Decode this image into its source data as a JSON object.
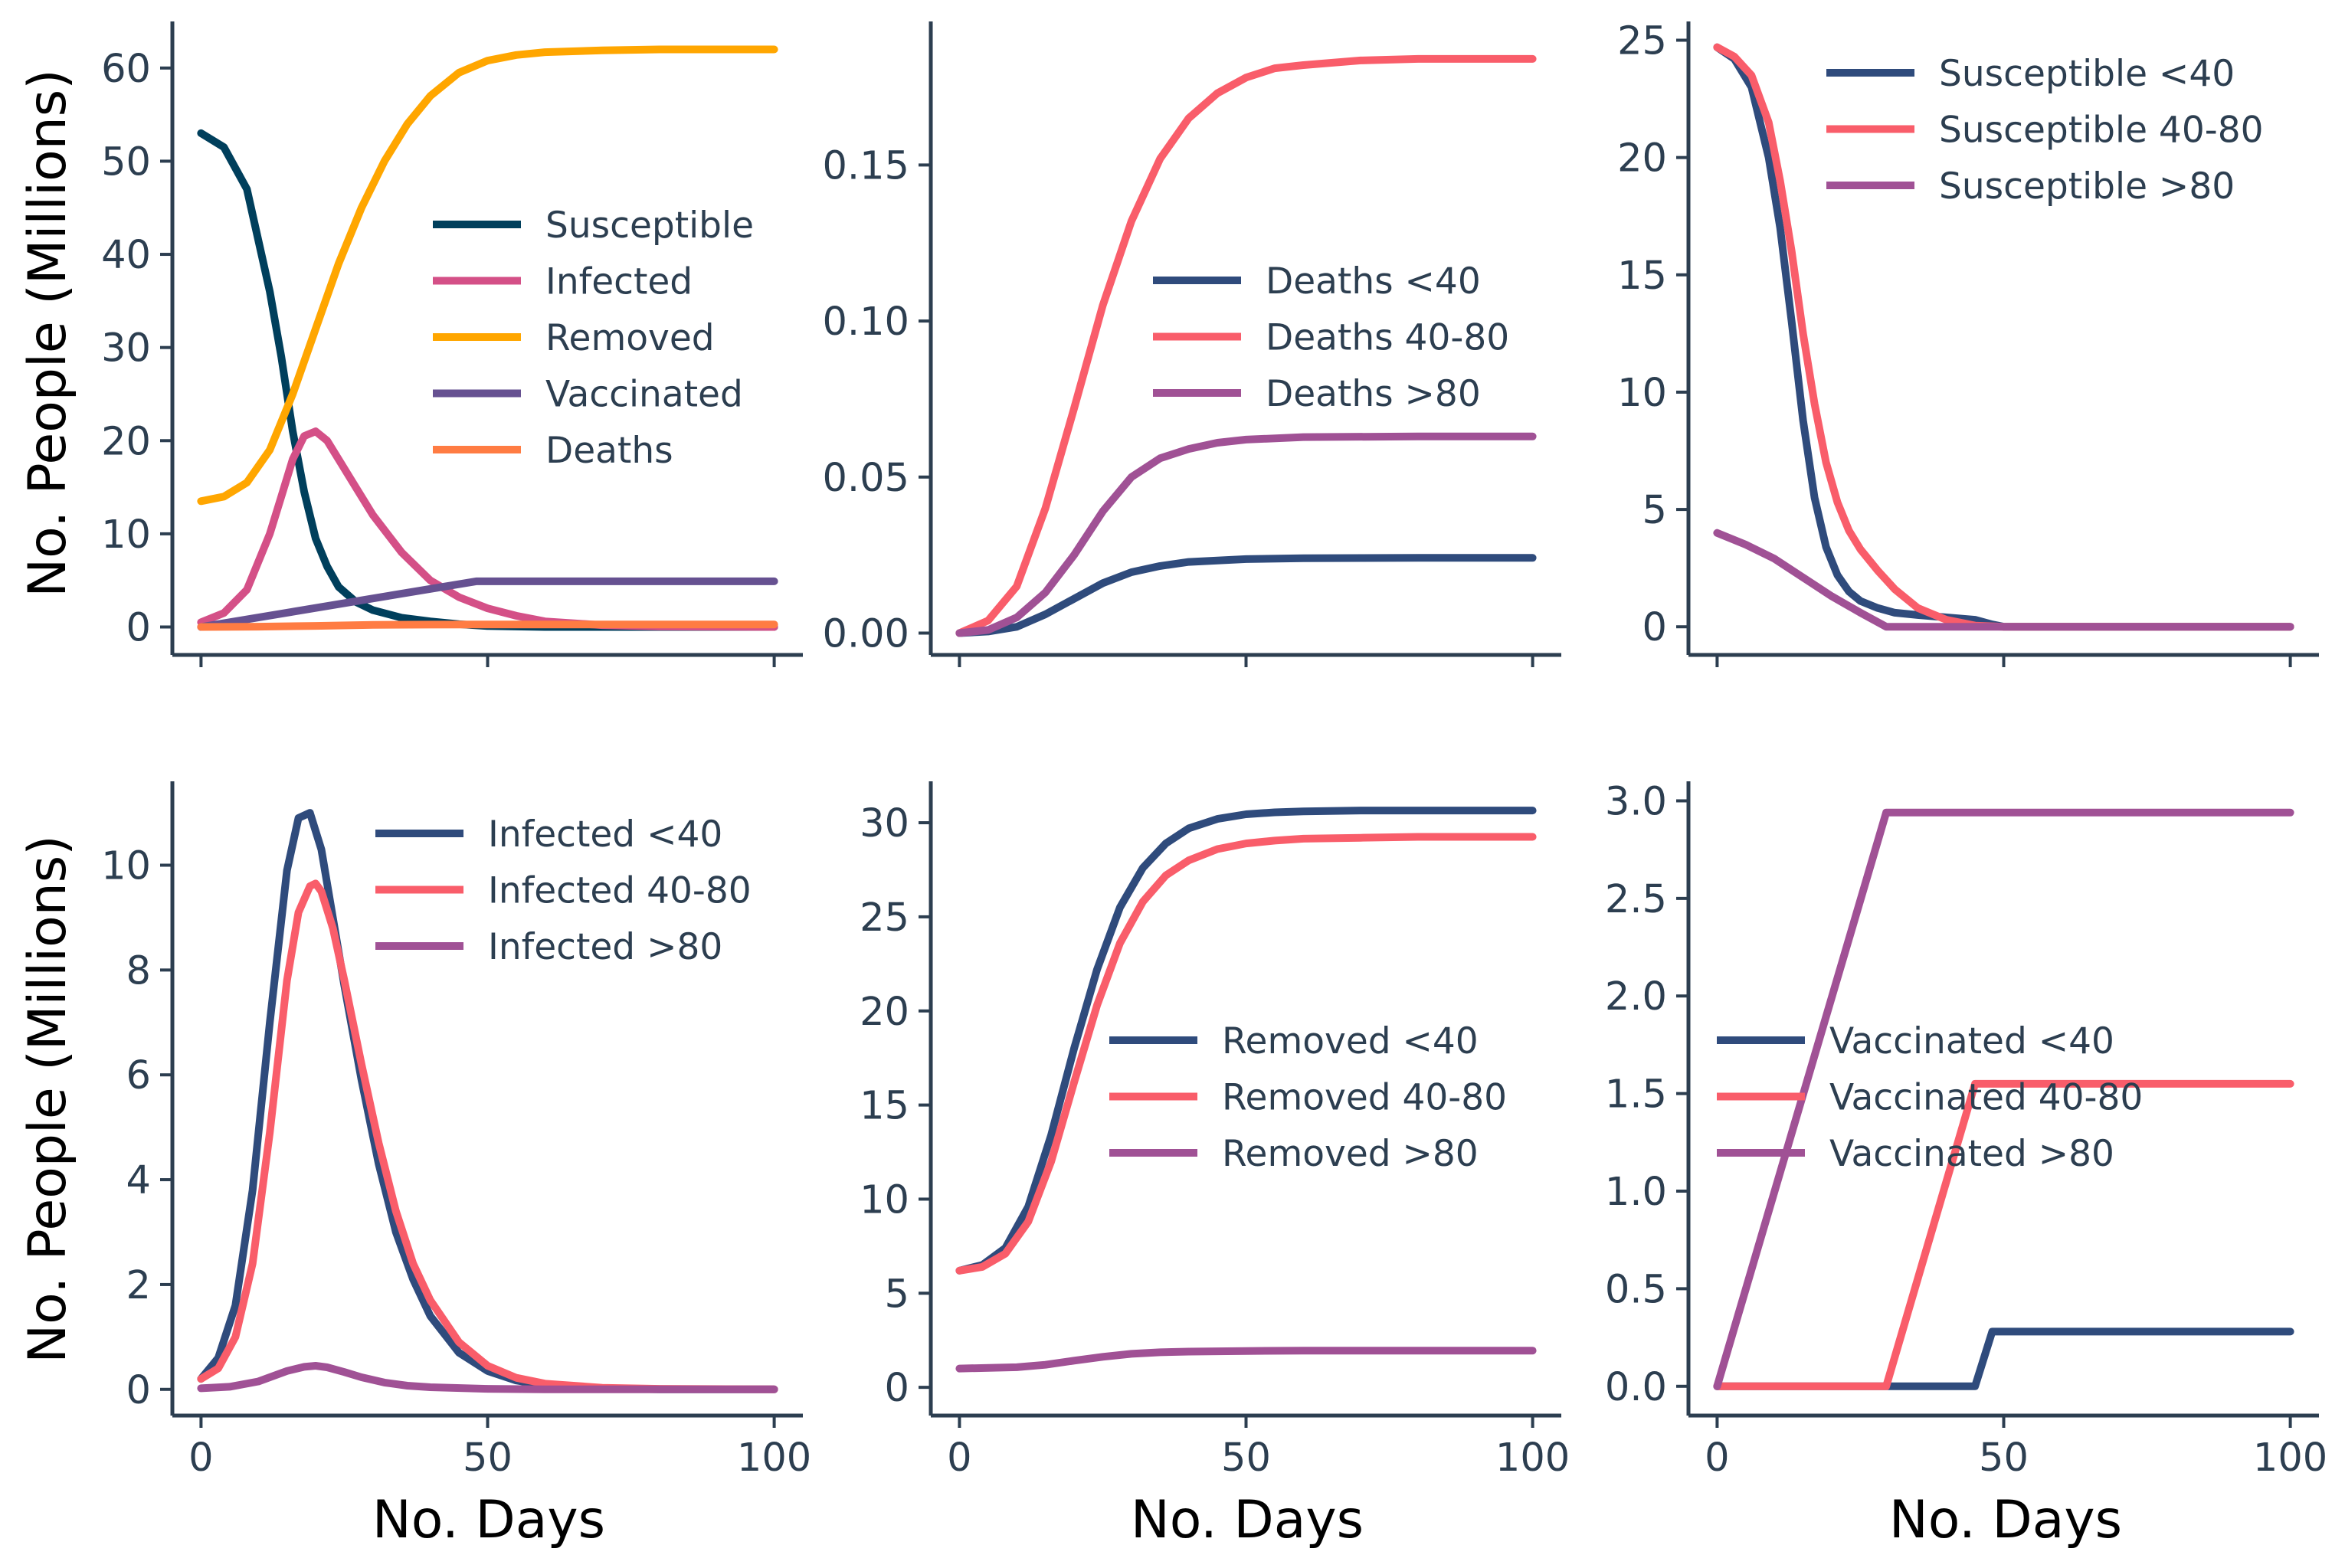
{
  "figure": {
    "xlabel": "No. Days",
    "ylabel": "No. People (Millions)"
  },
  "chart_data": [
    {
      "id": "total",
      "type": "line",
      "title": "",
      "xlabel": "",
      "ylabel": "No. People (Millions)",
      "xlim": [
        -5,
        105
      ],
      "ylim": [
        -3,
        65
      ],
      "xticks": [
        "0",
        "50",
        "100"
      ],
      "yticks": [
        "0",
        "10",
        "20",
        "30",
        "40",
        "50",
        "60"
      ],
      "legend_position": "center-right",
      "series": [
        {
          "name": "Susceptible",
          "color": "#003f5c",
          "x": [
            0,
            4,
            8,
            12,
            14,
            16,
            18,
            20,
            22,
            24,
            27,
            30,
            35,
            40,
            45,
            50,
            60,
            80,
            100
          ],
          "y": [
            53,
            51.5,
            47,
            36,
            29,
            21,
            14.5,
            9.5,
            6.5,
            4.3,
            2.7,
            1.8,
            1,
            0.6,
            0.3,
            0.1,
            0,
            0,
            0
          ]
        },
        {
          "name": "Infected",
          "color": "#d45087",
          "x": [
            0,
            4,
            8,
            12,
            14,
            16,
            18,
            20,
            22,
            24,
            27,
            30,
            35,
            40,
            45,
            50,
            55,
            60,
            70,
            80,
            100
          ],
          "y": [
            0.5,
            1.5,
            4,
            10,
            14,
            18,
            20.5,
            21,
            20,
            18,
            15,
            12,
            8,
            5,
            3.2,
            2,
            1.2,
            0.6,
            0.2,
            0.05,
            0
          ]
        },
        {
          "name": "Removed",
          "color": "#ffa600",
          "x": [
            0,
            4,
            8,
            12,
            16,
            20,
            24,
            28,
            32,
            36,
            40,
            45,
            50,
            55,
            60,
            70,
            80,
            100
          ],
          "y": [
            13.5,
            14,
            15.5,
            19,
            25,
            32,
            39,
            45,
            50,
            54,
            57,
            59.5,
            60.8,
            61.4,
            61.7,
            61.9,
            62,
            62
          ]
        },
        {
          "name": "Vaccinated",
          "color": "#665191",
          "x": [
            0,
            48,
            100
          ],
          "y": [
            0,
            4.9,
            4.9
          ]
        },
        {
          "name": "Deaths",
          "color": "#ff7c43",
          "x": [
            0,
            10,
            20,
            30,
            40,
            50,
            100
          ],
          "y": [
            0,
            0.03,
            0.12,
            0.22,
            0.26,
            0.27,
            0.27
          ]
        }
      ]
    },
    {
      "id": "deaths",
      "type": "line",
      "title": "",
      "xlabel": "",
      "ylabel": "",
      "xlim": [
        -5,
        105
      ],
      "ylim": [
        -0.007,
        0.196
      ],
      "xticks": [
        "0",
        "50",
        "100"
      ],
      "yticks": [
        "0.00",
        "0.05",
        "0.10",
        "0.15"
      ],
      "legend_position": "center-right",
      "series": [
        {
          "name": "Deaths <40",
          "color": "#2f4b7c",
          "x": [
            0,
            5,
            10,
            15,
            20,
            25,
            30,
            35,
            40,
            50,
            60,
            80,
            100
          ],
          "y": [
            0,
            0.0005,
            0.002,
            0.006,
            0.011,
            0.016,
            0.0195,
            0.0215,
            0.0228,
            0.0237,
            0.024,
            0.0241,
            0.0241
          ]
        },
        {
          "name": "Deaths 40-80",
          "color": "#f95d6a",
          "x": [
            0,
            5,
            10,
            15,
            20,
            25,
            30,
            35,
            40,
            45,
            50,
            55,
            60,
            70,
            80,
            100
          ],
          "y": [
            0,
            0.004,
            0.015,
            0.04,
            0.072,
            0.105,
            0.132,
            0.152,
            0.165,
            0.173,
            0.178,
            0.181,
            0.182,
            0.1835,
            0.184,
            0.184
          ]
        },
        {
          "name": "Deaths >80",
          "color": "#a05195",
          "x": [
            0,
            5,
            10,
            15,
            20,
            25,
            30,
            35,
            40,
            45,
            50,
            60,
            80,
            100
          ],
          "y": [
            0,
            0.001,
            0.005,
            0.013,
            0.025,
            0.039,
            0.05,
            0.056,
            0.059,
            0.061,
            0.062,
            0.0628,
            0.063,
            0.063
          ]
        }
      ]
    },
    {
      "id": "susceptible",
      "type": "line",
      "title": "",
      "xlabel": "",
      "ylabel": "",
      "xlim": [
        -5,
        105
      ],
      "ylim": [
        -1.2,
        25.8
      ],
      "xticks": [
        "0",
        "50",
        "100"
      ],
      "yticks": [
        "0",
        "5",
        "10",
        "15",
        "20",
        "25"
      ],
      "legend_position": "upper-right",
      "series": [
        {
          "name": "Susceptible <40",
          "color": "#2f4b7c",
          "x": [
            0,
            3,
            6,
            9,
            11,
            13,
            15,
            17,
            19,
            21,
            23,
            25,
            28,
            31,
            35,
            40,
            45,
            48,
            50,
            100
          ],
          "y": [
            24.7,
            24.2,
            23,
            20,
            17,
            13,
            8.8,
            5.5,
            3.4,
            2.2,
            1.5,
            1.1,
            0.8,
            0.6,
            0.5,
            0.4,
            0.3,
            0.1,
            0,
            0
          ]
        },
        {
          "name": "Susceptible 40-80",
          "color": "#f95d6a",
          "x": [
            0,
            3,
            6,
            9,
            11,
            13,
            15,
            17,
            19,
            21,
            23,
            25,
            28,
            31,
            35,
            40,
            45,
            50,
            100
          ],
          "y": [
            24.7,
            24.3,
            23.5,
            21.5,
            19,
            16,
            12.5,
            9.5,
            7,
            5.3,
            4.1,
            3.3,
            2.4,
            1.6,
            0.8,
            0.3,
            0.05,
            0,
            0
          ]
        },
        {
          "name": "Susceptible >80",
          "color": "#a05195",
          "x": [
            0,
            5,
            10,
            15,
            20,
            25,
            29.5,
            100
          ],
          "y": [
            4,
            3.5,
            2.9,
            2.1,
            1.3,
            0.6,
            0,
            0
          ]
        }
      ]
    },
    {
      "id": "infected",
      "type": "line",
      "title": "",
      "xlabel": "No. Days",
      "ylabel": "No. People (Millions)",
      "xlim": [
        -5,
        105
      ],
      "ylim": [
        -0.5,
        11.6
      ],
      "xticks": [
        "0",
        "50",
        "100"
      ],
      "yticks": [
        "0",
        "2",
        "4",
        "6",
        "8",
        "10"
      ],
      "legend_position": "upper-right",
      "series": [
        {
          "name": "Infected <40",
          "color": "#2f4b7c",
          "x": [
            0,
            3,
            6,
            9,
            12,
            15,
            17,
            19,
            21,
            23,
            25,
            28,
            31,
            34,
            37,
            40,
            45,
            50,
            55,
            60,
            70,
            80,
            100
          ],
          "y": [
            0.2,
            0.6,
            1.6,
            3.8,
            7,
            9.9,
            10.9,
            11,
            10.3,
            9,
            7.7,
            5.9,
            4.3,
            3,
            2.1,
            1.4,
            0.7,
            0.35,
            0.17,
            0.08,
            0.02,
            0,
            0
          ]
        },
        {
          "name": "Infected 40-80",
          "color": "#f95d6a",
          "x": [
            0,
            3,
            6,
            9,
            12,
            15,
            17,
            19,
            20,
            21,
            23,
            25,
            28,
            31,
            34,
            37,
            40,
            45,
            50,
            55,
            60,
            70,
            80,
            100
          ],
          "y": [
            0.2,
            0.4,
            1,
            2.4,
            4.9,
            7.8,
            9.1,
            9.6,
            9.65,
            9.5,
            8.8,
            7.8,
            6.2,
            4.7,
            3.4,
            2.4,
            1.7,
            0.9,
            0.45,
            0.22,
            0.11,
            0.03,
            0.01,
            0
          ]
        },
        {
          "name": "Infected >80",
          "color": "#a05195",
          "x": [
            0,
            5,
            10,
            15,
            18,
            20,
            22,
            25,
            28,
            32,
            36,
            40,
            50,
            60,
            100
          ],
          "y": [
            0.02,
            0.05,
            0.15,
            0.35,
            0.43,
            0.45,
            0.42,
            0.33,
            0.23,
            0.13,
            0.07,
            0.04,
            0.01,
            0,
            0
          ]
        }
      ]
    },
    {
      "id": "removed",
      "type": "line",
      "title": "",
      "xlabel": "No. Days",
      "ylabel": "",
      "xlim": [
        -5,
        105
      ],
      "ylim": [
        -1.5,
        32.2
      ],
      "xticks": [
        "0",
        "50",
        "100"
      ],
      "yticks": [
        "0",
        "5",
        "10",
        "15",
        "20",
        "25",
        "30"
      ],
      "legend_position": "center-right",
      "series": [
        {
          "name": "Removed <40",
          "color": "#2f4b7c",
          "x": [
            0,
            4,
            8,
            12,
            16,
            20,
            24,
            28,
            32,
            36,
            40,
            45,
            50,
            55,
            60,
            70,
            80,
            100
          ],
          "y": [
            6.2,
            6.5,
            7.4,
            9.6,
            13.4,
            18,
            22.2,
            25.5,
            27.6,
            28.9,
            29.7,
            30.2,
            30.45,
            30.55,
            30.6,
            30.65,
            30.65,
            30.65
          ]
        },
        {
          "name": "Removed 40-80",
          "color": "#f95d6a",
          "x": [
            0,
            4,
            8,
            12,
            16,
            20,
            24,
            28,
            32,
            36,
            40,
            45,
            50,
            55,
            60,
            70,
            80,
            100
          ],
          "y": [
            6.2,
            6.4,
            7.1,
            8.8,
            12,
            16.2,
            20.3,
            23.6,
            25.8,
            27.2,
            28,
            28.6,
            28.9,
            29.05,
            29.15,
            29.2,
            29.25,
            29.25
          ]
        },
        {
          "name": "Removed >80",
          "color": "#a05195",
          "x": [
            0,
            10,
            15,
            20,
            25,
            30,
            35,
            40,
            50,
            60,
            100
          ],
          "y": [
            1,
            1.07,
            1.2,
            1.42,
            1.62,
            1.78,
            1.86,
            1.9,
            1.93,
            1.95,
            1.95
          ]
        }
      ]
    },
    {
      "id": "vaccinated",
      "type": "line",
      "title": "",
      "xlabel": "No. Days",
      "ylabel": "",
      "xlim": [
        -5,
        105
      ],
      "ylim": [
        -0.15,
        3.1
      ],
      "xticks": [
        "0",
        "50",
        "100"
      ],
      "yticks": [
        "0.0",
        "0.5",
        "1.0",
        "1.5",
        "2.0",
        "2.5",
        "3.0"
      ],
      "legend_position": "center-left",
      "series": [
        {
          "name": "Vaccinated <40",
          "color": "#2f4b7c",
          "x": [
            0,
            45,
            48,
            100
          ],
          "y": [
            0,
            0,
            0.28,
            0.28
          ]
        },
        {
          "name": "Vaccinated 40-80",
          "color": "#f95d6a",
          "x": [
            0,
            29.5,
            45,
            100
          ],
          "y": [
            0,
            0,
            1.55,
            1.55
          ]
        },
        {
          "name": "Vaccinated >80",
          "color": "#a05195",
          "x": [
            0,
            29.5,
            100
          ],
          "y": [
            0,
            2.94,
            2.94
          ]
        }
      ]
    }
  ]
}
